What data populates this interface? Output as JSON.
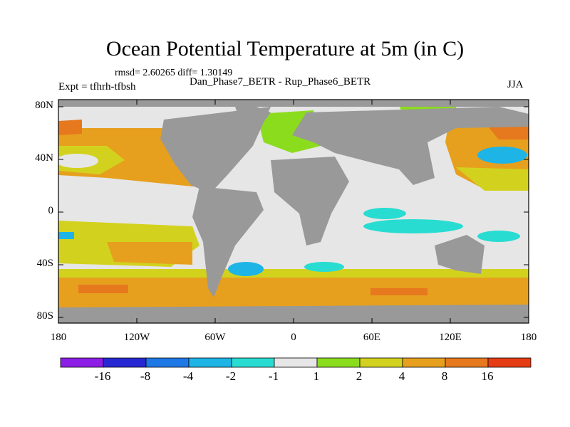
{
  "title": "Ocean Potential Temperature at 5m (in C)",
  "stats": "rmsd= 2.60265 diff= 1.30149",
  "subtitle": "Dan_Phase7_BETR - Rup_Phase6_BETR",
  "experiment": "Expt = tfhrh-tfbsh",
  "season": "JJA",
  "axes": {
    "lon_ticks": [
      "180",
      "120W",
      "60W",
      "0",
      "60E",
      "120E",
      "180"
    ],
    "lat_ticks": [
      "80N",
      "40N",
      "0",
      "40S",
      "80S"
    ]
  },
  "colorbar": {
    "labels": [
      "-16",
      "-8",
      "-4",
      "-2",
      "-1",
      "1",
      "2",
      "4",
      "8",
      "16"
    ],
    "colors": [
      "#8c1ee6",
      "#2828d2",
      "#1e78e6",
      "#1eb4e6",
      "#28dcd2",
      "#e6e6e6",
      "#8cdc1e",
      "#d2d21e",
      "#e6a01e",
      "#e6781e",
      "#e63c14"
    ]
  },
  "palette": {
    "land": "#999999",
    "frame": "#000000",
    "coast": "#000000"
  }
}
